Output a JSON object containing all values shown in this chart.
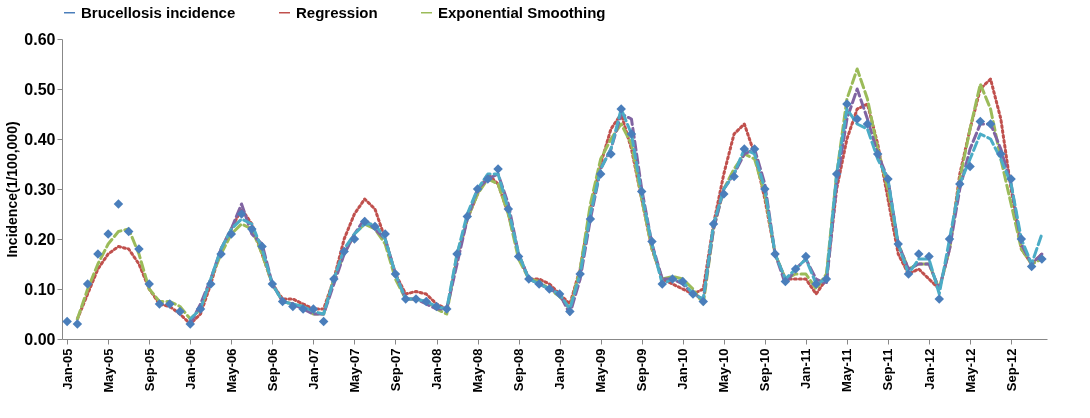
{
  "chart_data": {
    "type": "line",
    "ylabel": "Incidence(1/100,000)",
    "grid": false,
    "legend": "top",
    "categories": [
      "Jan-05",
      null,
      null,
      null,
      "May-05",
      null,
      null,
      null,
      "Sep-05",
      null,
      null,
      null,
      "Jan-06",
      null,
      null,
      null,
      "May-06",
      null,
      null,
      null,
      "Sep-06",
      null,
      null,
      null,
      "Jan-07",
      null,
      null,
      null,
      "May-07",
      null,
      null,
      null,
      "Sep-07",
      null,
      null,
      null,
      "Jan-08",
      null,
      null,
      null,
      "May-08",
      null,
      null,
      null,
      "Sep-08",
      null,
      null,
      null,
      "Jan-09",
      null,
      null,
      null,
      "May-09",
      null,
      null,
      null,
      "Sep-09",
      null,
      null,
      null,
      "Jan-10",
      null,
      null,
      null,
      "May-10",
      null,
      null,
      null,
      "Sep-10",
      null,
      null,
      null,
      "Jan-11",
      null,
      null,
      null,
      "May-11",
      null,
      null,
      null,
      "Sep-11",
      null,
      null,
      null,
      "Jan-12",
      null,
      null,
      null,
      "May-12",
      null,
      null,
      null,
      "Sep-12",
      null,
      null,
      null
    ],
    "ylim": [
      0,
      0.6
    ],
    "yticks": [
      {
        "value": 0,
        "label": "0.00"
      },
      {
        "value": 0.1,
        "label": "0.10"
      },
      {
        "value": 0.2,
        "label": "0.20"
      },
      {
        "value": 0.3,
        "label": "0.30"
      },
      {
        "value": 0.4,
        "label": "0.40"
      },
      {
        "value": 0.5,
        "label": "0.50"
      },
      {
        "value": 0.6,
        "label": "0.60"
      }
    ],
    "series": [
      {
        "name": "Brucellosis incidence",
        "type": "scatter",
        "marker": "diamond",
        "color": "#4a7ebb",
        "values": [
          0.035,
          0.03,
          0.11,
          0.17,
          0.21,
          0.27,
          0.215,
          0.18,
          0.11,
          0.07,
          0.07,
          0.055,
          0.03,
          0.06,
          0.11,
          0.17,
          0.21,
          0.25,
          0.22,
          0.185,
          0.11,
          0.075,
          0.065,
          0.06,
          0.06,
          0.035,
          0.12,
          0.175,
          0.2,
          0.235,
          0.225,
          0.21,
          0.13,
          0.08,
          0.08,
          0.075,
          0.065,
          0.06,
          0.17,
          0.245,
          0.3,
          0.32,
          0.34,
          0.26,
          0.165,
          0.12,
          0.11,
          0.1,
          0.09,
          0.055,
          0.13,
          0.24,
          0.33,
          0.37,
          0.46,
          0.41,
          0.295,
          0.195,
          0.11,
          0.12,
          0.115,
          0.09,
          0.075,
          0.23,
          0.29,
          0.325,
          0.38,
          0.38,
          0.3,
          0.17,
          0.115,
          0.14,
          0.165,
          0.11,
          0.12,
          0.33,
          0.47,
          0.44,
          0.43,
          0.37,
          0.32,
          0.19,
          0.13,
          0.17,
          0.165,
          0.08,
          0.2,
          0.31,
          0.345,
          0.435,
          0.43,
          0.37,
          0.32,
          0.2,
          0.145,
          0.16
        ]
      },
      {
        "name": "Regression",
        "type": "line",
        "line_style": "dotted",
        "color": "#c0504d",
        "values": [
          null,
          0.04,
          0.09,
          0.14,
          0.17,
          0.185,
          0.18,
          0.15,
          0.1,
          0.07,
          0.065,
          0.05,
          0.03,
          0.05,
          0.11,
          0.18,
          0.22,
          0.26,
          0.23,
          0.17,
          0.11,
          0.08,
          0.08,
          0.07,
          0.06,
          0.06,
          0.12,
          0.2,
          0.25,
          0.28,
          0.26,
          0.2,
          0.13,
          0.09,
          0.095,
          0.09,
          0.07,
          0.06,
          0.16,
          0.24,
          0.29,
          0.33,
          0.31,
          0.25,
          0.17,
          0.12,
          0.12,
          0.11,
          0.09,
          0.07,
          0.14,
          0.26,
          0.35,
          0.42,
          0.45,
          0.38,
          0.28,
          0.18,
          0.12,
          0.11,
          0.1,
          0.09,
          0.1,
          0.23,
          0.33,
          0.41,
          0.43,
          0.37,
          0.28,
          0.17,
          0.12,
          0.12,
          0.12,
          0.09,
          0.12,
          0.3,
          0.4,
          0.46,
          0.47,
          0.39,
          0.28,
          0.17,
          0.13,
          0.14,
          0.12,
          0.1,
          0.18,
          0.33,
          0.42,
          0.5,
          0.52,
          0.44,
          0.3,
          0.18,
          0.15,
          0.17
        ]
      },
      {
        "name": "Exponential Smoothing",
        "type": "line",
        "line_style": "dashed",
        "color": "#9bbb59",
        "values": [
          null,
          0.04,
          0.1,
          0.15,
          0.19,
          0.215,
          0.22,
          0.17,
          0.1,
          0.075,
          0.075,
          0.065,
          0.04,
          0.06,
          0.12,
          0.17,
          0.21,
          0.23,
          0.22,
          0.17,
          0.11,
          0.075,
          0.07,
          0.065,
          0.05,
          0.05,
          0.12,
          0.17,
          0.21,
          0.23,
          0.22,
          0.19,
          0.12,
          0.08,
          0.08,
          0.075,
          0.06,
          0.05,
          0.17,
          0.24,
          0.29,
          0.32,
          0.31,
          0.25,
          0.16,
          0.12,
          0.115,
          0.1,
          0.085,
          0.06,
          0.14,
          0.27,
          0.36,
          0.4,
          0.43,
          0.39,
          0.28,
          0.18,
          0.12,
          0.125,
          0.12,
          0.1,
          0.07,
          0.22,
          0.3,
          0.34,
          0.37,
          0.36,
          0.29,
          0.17,
          0.12,
          0.13,
          0.13,
          0.1,
          0.13,
          0.33,
          0.48,
          0.54,
          0.48,
          0.38,
          0.3,
          0.19,
          0.14,
          0.15,
          0.15,
          0.1,
          0.18,
          0.32,
          0.42,
          0.51,
          0.46,
          0.36,
          0.27,
          0.18,
          0.15,
          0.16
        ]
      },
      {
        "type": "line",
        "line_style": "dashed",
        "color": "#8064a2",
        "values": [
          null,
          null,
          null,
          null,
          null,
          null,
          null,
          null,
          null,
          null,
          null,
          null,
          0.03,
          0.07,
          0.12,
          0.18,
          0.22,
          0.27,
          0.21,
          0.19,
          0.11,
          0.075,
          0.07,
          0.06,
          0.05,
          0.05,
          0.11,
          0.17,
          0.21,
          0.24,
          0.22,
          0.2,
          0.13,
          0.08,
          0.08,
          0.07,
          0.06,
          0.06,
          0.15,
          0.24,
          0.3,
          0.32,
          0.33,
          0.27,
          0.17,
          0.12,
          0.11,
          0.1,
          0.09,
          0.05,
          0.12,
          0.24,
          0.34,
          0.38,
          0.45,
          0.44,
          0.3,
          0.19,
          0.12,
          0.12,
          0.11,
          0.09,
          0.08,
          0.22,
          0.3,
          0.33,
          0.37,
          0.38,
          0.31,
          0.17,
          0.11,
          0.14,
          0.16,
          0.12,
          0.11,
          0.31,
          0.44,
          0.5,
          0.44,
          0.37,
          0.32,
          0.19,
          0.14,
          0.15,
          0.15,
          0.1,
          0.18,
          0.3,
          0.38,
          0.43,
          0.43,
          0.38,
          0.31,
          0.19,
          0.15,
          0.17
        ]
      },
      {
        "type": "line",
        "line_style": "dashed",
        "color": "#4bacc6",
        "values": [
          null,
          null,
          null,
          null,
          null,
          null,
          null,
          null,
          null,
          null,
          null,
          null,
          0.04,
          0.06,
          0.12,
          0.18,
          0.22,
          0.24,
          0.23,
          0.18,
          0.11,
          0.075,
          0.07,
          0.065,
          0.055,
          0.05,
          0.12,
          0.18,
          0.21,
          0.23,
          0.23,
          0.2,
          0.13,
          0.08,
          0.08,
          0.075,
          0.065,
          0.06,
          0.17,
          0.25,
          0.3,
          0.33,
          0.33,
          0.26,
          0.17,
          0.12,
          0.11,
          0.1,
          0.09,
          0.06,
          0.13,
          0.25,
          0.34,
          0.38,
          0.46,
          0.41,
          0.29,
          0.19,
          0.11,
          0.12,
          0.115,
          0.09,
          0.08,
          0.23,
          0.3,
          0.33,
          0.38,
          0.37,
          0.3,
          0.17,
          0.12,
          0.14,
          0.16,
          0.11,
          0.12,
          0.33,
          0.46,
          0.43,
          0.42,
          0.36,
          0.32,
          0.19,
          0.13,
          0.16,
          0.16,
          0.09,
          0.2,
          0.31,
          0.36,
          0.41,
          0.4,
          0.36,
          0.31,
          0.2,
          0.15,
          0.21
        ]
      }
    ]
  }
}
